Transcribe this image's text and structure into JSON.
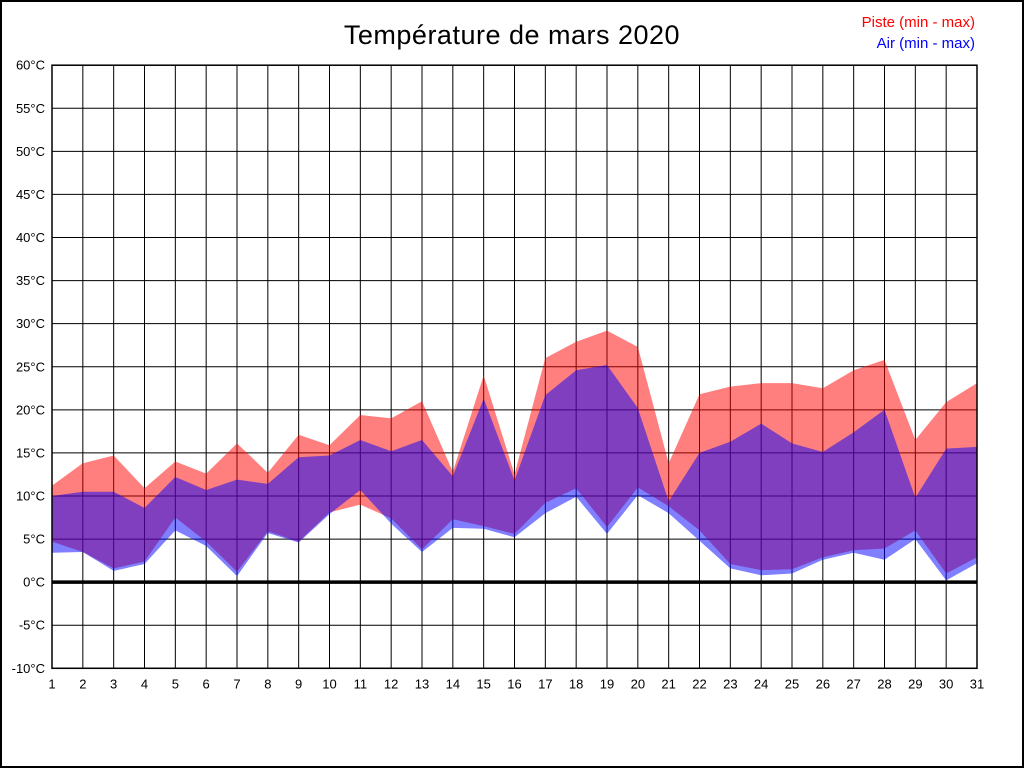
{
  "title": "Température de mars 2020",
  "legend": {
    "piste_label": "Piste (min - max)",
    "air_label": "Air (min - max)",
    "piste_color": "#ff0000",
    "air_color": "#0000ff"
  },
  "chart_data": {
    "type": "area",
    "title": "Température de mars 2020",
    "xlabel": "",
    "ylabel": "",
    "x": [
      1,
      2,
      3,
      4,
      5,
      6,
      7,
      8,
      9,
      10,
      11,
      12,
      13,
      14,
      15,
      16,
      17,
      18,
      19,
      20,
      21,
      22,
      23,
      24,
      25,
      26,
      27,
      28,
      29,
      30,
      31
    ],
    "x_tick_labels": [
      "1",
      "2",
      "3",
      "4",
      "5",
      "6",
      "7",
      "8",
      "9",
      "10",
      "11",
      "12",
      "13",
      "14",
      "15",
      "16",
      "17",
      "18",
      "19",
      "20",
      "21",
      "22",
      "23",
      "24",
      "25",
      "26",
      "27",
      "28",
      "29",
      "30",
      "31"
    ],
    "ylim": [
      -10,
      60
    ],
    "y_ticks": [
      60,
      55,
      50,
      45,
      40,
      35,
      30,
      25,
      20,
      15,
      10,
      5,
      0,
      -5,
      -10
    ],
    "y_tick_labels": [
      "60°C",
      "55°C",
      "50°C",
      "45°C",
      "40°C",
      "35°C",
      "30°C",
      "25°C",
      "20°C",
      "15°C",
      "10°C",
      "5°C",
      "0°C",
      "-5°C",
      "-10°C"
    ],
    "grid": true,
    "zero_line": 0,
    "legend_position": "top-right",
    "series": [
      {
        "name": "Piste (min - max)",
        "fill": "rgba(255,0,0,0.5)",
        "min": [
          4.7,
          3.5,
          1.6,
          2.4,
          7.5,
          4.7,
          1.2,
          5.9,
          4.7,
          8.1,
          9.0,
          7.4,
          3.8,
          7.3,
          6.5,
          5.6,
          9.2,
          10.9,
          6.4,
          11.0,
          8.8,
          6.0,
          2.1,
          1.4,
          1.5,
          2.9,
          3.7,
          3.9,
          6.0,
          1.0,
          2.9
        ],
        "max": [
          11.2,
          13.8,
          14.7,
          10.9,
          14.0,
          12.6,
          16.1,
          12.7,
          17.1,
          15.9,
          19.4,
          19.0,
          21.0,
          12.8,
          24.0,
          12.5,
          26.0,
          27.9,
          29.2,
          27.3,
          13.8,
          21.8,
          22.7,
          23.1,
          23.1,
          22.5,
          24.6,
          25.8,
          16.5,
          20.9,
          23.1
        ]
      },
      {
        "name": "Air (min - max)",
        "fill": "rgba(0,0,255,0.5)",
        "min": [
          3.4,
          3.5,
          1.3,
          2.1,
          6.0,
          4.2,
          0.7,
          5.7,
          4.6,
          7.9,
          10.7,
          6.8,
          3.5,
          6.3,
          6.2,
          5.2,
          8.0,
          9.9,
          5.6,
          10.1,
          8.0,
          4.8,
          1.6,
          0.8,
          1.0,
          2.6,
          3.4,
          2.6,
          5.0,
          0.2,
          2.2
        ],
        "max": [
          10.0,
          10.5,
          10.5,
          8.6,
          12.2,
          10.7,
          11.9,
          11.4,
          14.5,
          14.7,
          16.5,
          15.2,
          16.5,
          12.3,
          21.3,
          11.8,
          21.7,
          24.6,
          25.2,
          20.2,
          9.4,
          15.0,
          16.3,
          18.4,
          16.1,
          15.1,
          17.4,
          20.0,
          9.8,
          15.5,
          15.7
        ]
      }
    ]
  }
}
